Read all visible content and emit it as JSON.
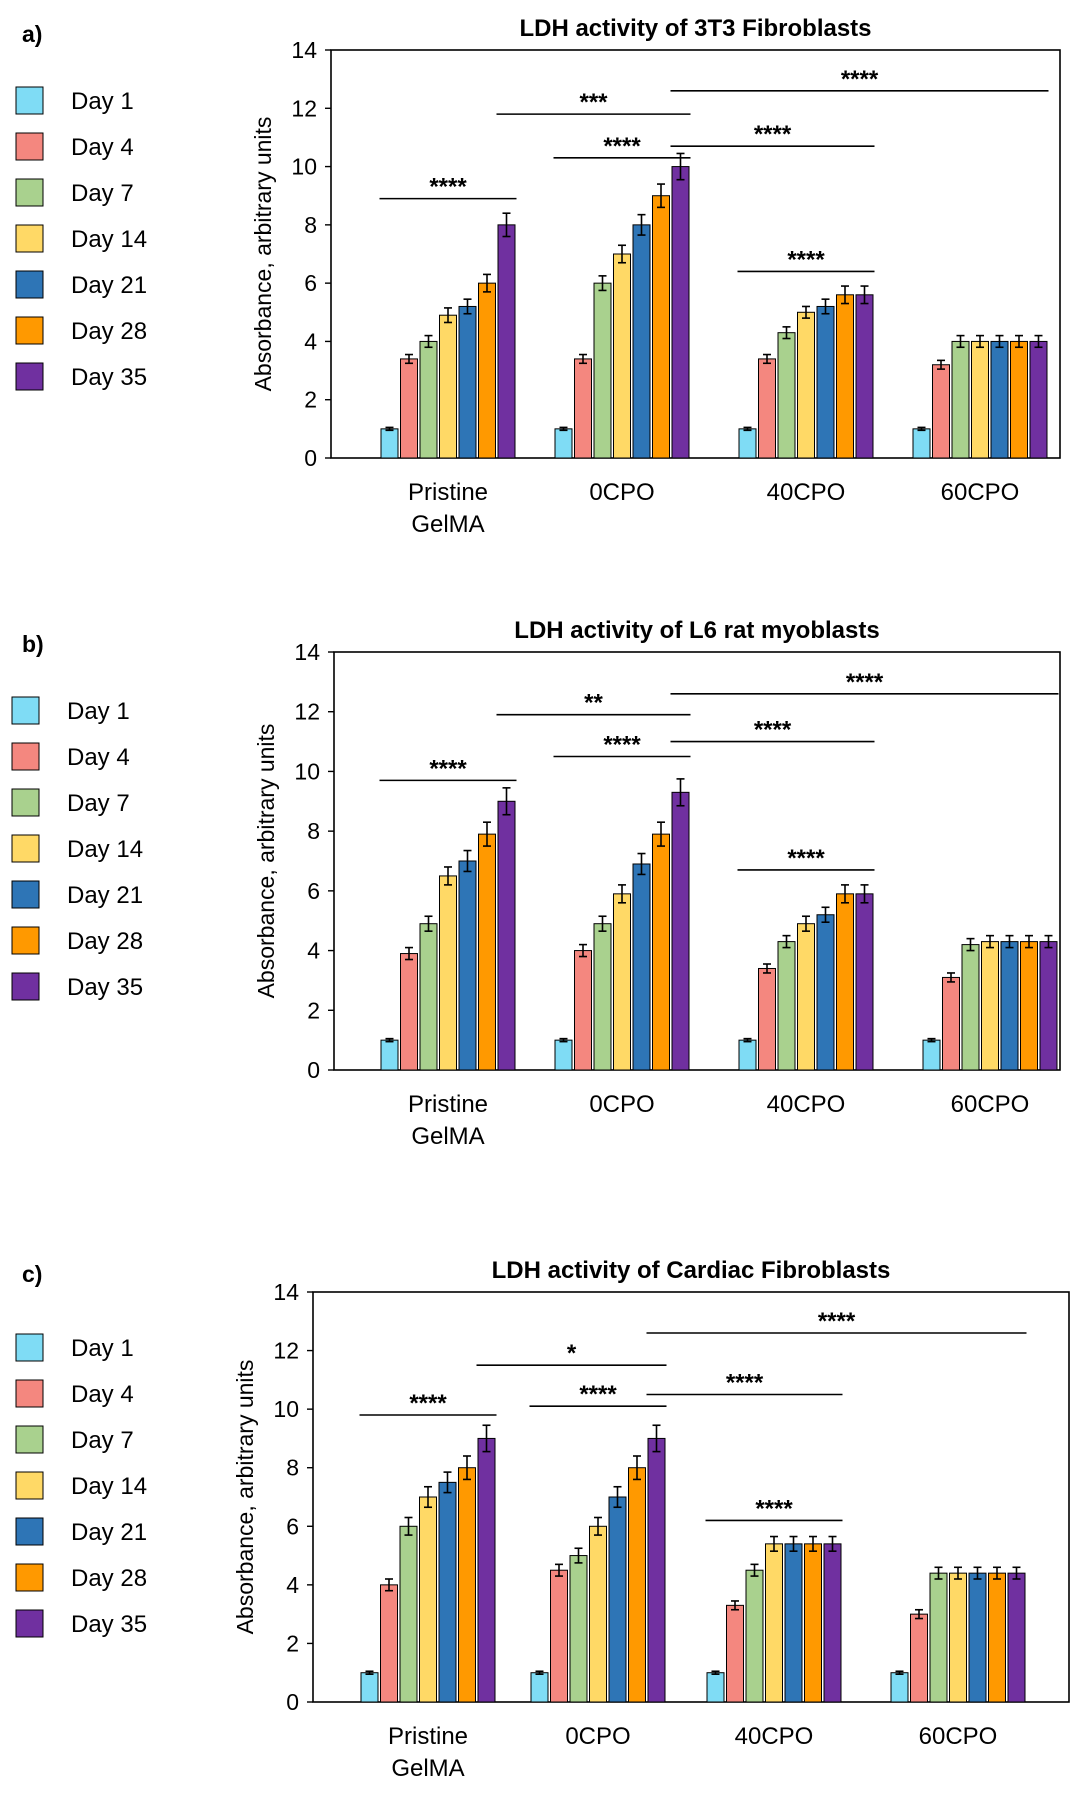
{
  "figure": {
    "legend_days": [
      "Day 1",
      "Day 4",
      "Day 7",
      "Day 14",
      "Day 21",
      "Day 28",
      "Day 35"
    ],
    "series_colors": [
      "#7fdcf5",
      "#f4877f",
      "#a9d18e",
      "#ffd966",
      "#2e75b6",
      "#ff9900",
      "#7030a0"
    ]
  },
  "chart_data": [
    {
      "type": "bar",
      "panel_label": "a)",
      "title": "LDH activity of 3T3 Fibroblasts",
      "ylabel": "Absorbance, arbitrary units",
      "xlabel": "",
      "ylim": [
        0,
        14
      ],
      "yticks": [
        0,
        2,
        4,
        6,
        8,
        10,
        12,
        14
      ],
      "grid": false,
      "legend": "left",
      "categories": [
        [
          "Pristine",
          "GelMA"
        ],
        [
          "0CPO"
        ],
        [
          "40CPO"
        ],
        [
          "60CPO"
        ]
      ],
      "series": [
        {
          "name": "Day 1",
          "values": [
            1.0,
            1.0,
            1.0,
            1.0
          ],
          "errors": [
            0.05,
            0.05,
            0.05,
            0.05
          ]
        },
        {
          "name": "Day 4",
          "values": [
            3.4,
            3.4,
            3.4,
            3.2
          ],
          "errors": [
            0.15,
            0.15,
            0.15,
            0.15
          ]
        },
        {
          "name": "Day 7",
          "values": [
            4.0,
            6.0,
            4.3,
            4.0
          ],
          "errors": [
            0.2,
            0.25,
            0.2,
            0.2
          ]
        },
        {
          "name": "Day 14",
          "values": [
            4.9,
            7.0,
            5.0,
            4.0
          ],
          "errors": [
            0.25,
            0.3,
            0.2,
            0.2
          ]
        },
        {
          "name": "Day 21",
          "values": [
            5.2,
            8.0,
            5.2,
            4.0
          ],
          "errors": [
            0.25,
            0.35,
            0.25,
            0.2
          ]
        },
        {
          "name": "Day 28",
          "values": [
            6.0,
            9.0,
            5.6,
            4.0
          ],
          "errors": [
            0.3,
            0.4,
            0.3,
            0.2
          ]
        },
        {
          "name": "Day 35",
          "values": [
            8.0,
            10.0,
            5.6,
            4.0
          ],
          "errors": [
            0.4,
            0.45,
            0.3,
            0.2
          ]
        }
      ],
      "annotations": [
        {
          "text": "****",
          "from": [
            0,
            0
          ],
          "to": [
            0,
            6
          ],
          "y": 8.9
        },
        {
          "text": "****",
          "from": [
            1,
            0
          ],
          "to": [
            1,
            6
          ],
          "y": 10.3
        },
        {
          "text": "***",
          "from": [
            0,
            6
          ],
          "to": [
            1,
            6
          ],
          "y": 11.8
        },
        {
          "text": "****",
          "from": [
            1,
            6
          ],
          "to": [
            2,
            6
          ],
          "y": 10.7
        },
        {
          "text": "****",
          "from": [
            1,
            6
          ],
          "to": [
            3,
            6
          ],
          "y": 12.6
        },
        {
          "text": "****",
          "from": [
            2,
            0
          ],
          "to": [
            2,
            6
          ],
          "y": 6.4
        }
      ]
    },
    {
      "type": "bar",
      "panel_label": "b)",
      "title": "LDH activity of L6 rat myoblasts",
      "ylabel": "Absorbance, arbitrary units",
      "xlabel": "",
      "ylim": [
        0,
        14
      ],
      "yticks": [
        0,
        2,
        4,
        6,
        8,
        10,
        12,
        14
      ],
      "grid": false,
      "legend": "left",
      "categories": [
        [
          "Pristine",
          "GelMA"
        ],
        [
          "0CPO"
        ],
        [
          "40CPO"
        ],
        [
          "60CPO"
        ]
      ],
      "series": [
        {
          "name": "Day 1",
          "values": [
            1.0,
            1.0,
            1.0,
            1.0
          ],
          "errors": [
            0.05,
            0.05,
            0.05,
            0.05
          ]
        },
        {
          "name": "Day 4",
          "values": [
            3.9,
            4.0,
            3.4,
            3.1
          ],
          "errors": [
            0.2,
            0.2,
            0.15,
            0.15
          ]
        },
        {
          "name": "Day 7",
          "values": [
            4.9,
            4.9,
            4.3,
            4.2
          ],
          "errors": [
            0.25,
            0.25,
            0.2,
            0.2
          ]
        },
        {
          "name": "Day 14",
          "values": [
            6.5,
            5.9,
            4.9,
            4.3
          ],
          "errors": [
            0.3,
            0.3,
            0.25,
            0.2
          ]
        },
        {
          "name": "Day 21",
          "values": [
            7.0,
            6.9,
            5.2,
            4.3
          ],
          "errors": [
            0.35,
            0.35,
            0.25,
            0.2
          ]
        },
        {
          "name": "Day 28",
          "values": [
            7.9,
            7.9,
            5.9,
            4.3
          ],
          "errors": [
            0.4,
            0.4,
            0.3,
            0.2
          ]
        },
        {
          "name": "Day 35",
          "values": [
            9.0,
            9.3,
            5.9,
            4.3
          ],
          "errors": [
            0.45,
            0.45,
            0.3,
            0.2
          ]
        }
      ],
      "annotations": [
        {
          "text": "****",
          "from": [
            0,
            0
          ],
          "to": [
            0,
            6
          ],
          "y": 9.7
        },
        {
          "text": "****",
          "from": [
            1,
            0
          ],
          "to": [
            1,
            6
          ],
          "y": 10.5
        },
        {
          "text": "**",
          "from": [
            0,
            6
          ],
          "to": [
            1,
            6
          ],
          "y": 11.9
        },
        {
          "text": "****",
          "from": [
            1,
            6
          ],
          "to": [
            2,
            6
          ],
          "y": 11.0
        },
        {
          "text": "****",
          "from": [
            1,
            6
          ],
          "to": [
            3,
            6
          ],
          "y": 12.6
        },
        {
          "text": "****",
          "from": [
            2,
            0
          ],
          "to": [
            2,
            6
          ],
          "y": 6.7
        }
      ]
    },
    {
      "type": "bar",
      "panel_label": "c)",
      "title": "LDH activity of Cardiac Fibroblasts",
      "ylabel": "Absorbance, arbitrary units",
      "xlabel": "",
      "ylim": [
        0,
        14
      ],
      "yticks": [
        0,
        2,
        4,
        6,
        8,
        10,
        12,
        14
      ],
      "grid": false,
      "legend": "left",
      "categories": [
        [
          "Pristine",
          "GelMA"
        ],
        [
          "0CPO"
        ],
        [
          "40CPO"
        ],
        [
          "60CPO"
        ]
      ],
      "series": [
        {
          "name": "Day 1",
          "values": [
            1.0,
            1.0,
            1.0,
            1.0
          ],
          "errors": [
            0.05,
            0.05,
            0.05,
            0.05
          ]
        },
        {
          "name": "Day 4",
          "values": [
            4.0,
            4.5,
            3.3,
            3.0
          ],
          "errors": [
            0.2,
            0.2,
            0.15,
            0.15
          ]
        },
        {
          "name": "Day 7",
          "values": [
            6.0,
            5.0,
            4.5,
            4.4
          ],
          "errors": [
            0.3,
            0.25,
            0.2,
            0.2
          ]
        },
        {
          "name": "Day 14",
          "values": [
            7.0,
            6.0,
            5.4,
            4.4
          ],
          "errors": [
            0.35,
            0.3,
            0.25,
            0.2
          ]
        },
        {
          "name": "Day 21",
          "values": [
            7.5,
            7.0,
            5.4,
            4.4
          ],
          "errors": [
            0.35,
            0.35,
            0.25,
            0.2
          ]
        },
        {
          "name": "Day 28",
          "values": [
            8.0,
            8.0,
            5.4,
            4.4
          ],
          "errors": [
            0.4,
            0.4,
            0.25,
            0.2
          ]
        },
        {
          "name": "Day 35",
          "values": [
            9.0,
            9.0,
            5.4,
            4.4
          ],
          "errors": [
            0.45,
            0.45,
            0.25,
            0.2
          ]
        }
      ],
      "annotations": [
        {
          "text": "****",
          "from": [
            0,
            0
          ],
          "to": [
            0,
            6
          ],
          "y": 9.8
        },
        {
          "text": "****",
          "from": [
            1,
            0
          ],
          "to": [
            1,
            6
          ],
          "y": 10.1
        },
        {
          "text": "*",
          "from": [
            0,
            6
          ],
          "to": [
            1,
            6
          ],
          "y": 11.5
        },
        {
          "text": "****",
          "from": [
            1,
            6
          ],
          "to": [
            2,
            6
          ],
          "y": 10.5
        },
        {
          "text": "****",
          "from": [
            1,
            6
          ],
          "to": [
            3,
            6
          ],
          "y": 12.6
        },
        {
          "text": "****",
          "from": [
            2,
            0
          ],
          "to": [
            2,
            6
          ],
          "y": 6.2
        }
      ]
    }
  ]
}
